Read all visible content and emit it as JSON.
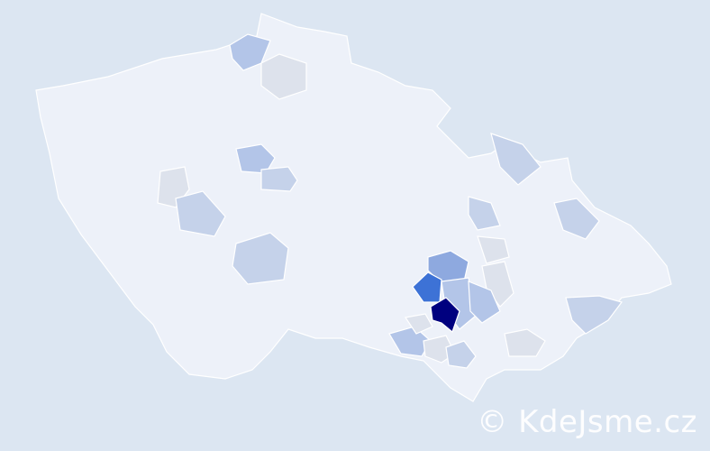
{
  "map": {
    "colors": {
      "background": "#dce6f2",
      "base": "#edf1f9",
      "level_gray": "#dde2ec",
      "level_1": "#c5d2ea",
      "level_2": "#b3c5e8",
      "level_3": "#8ea9df",
      "level_4": "#3d72d6",
      "level_5": "#00007f"
    }
  },
  "watermark": {
    "text": "© KdeJsme.cz"
  }
}
